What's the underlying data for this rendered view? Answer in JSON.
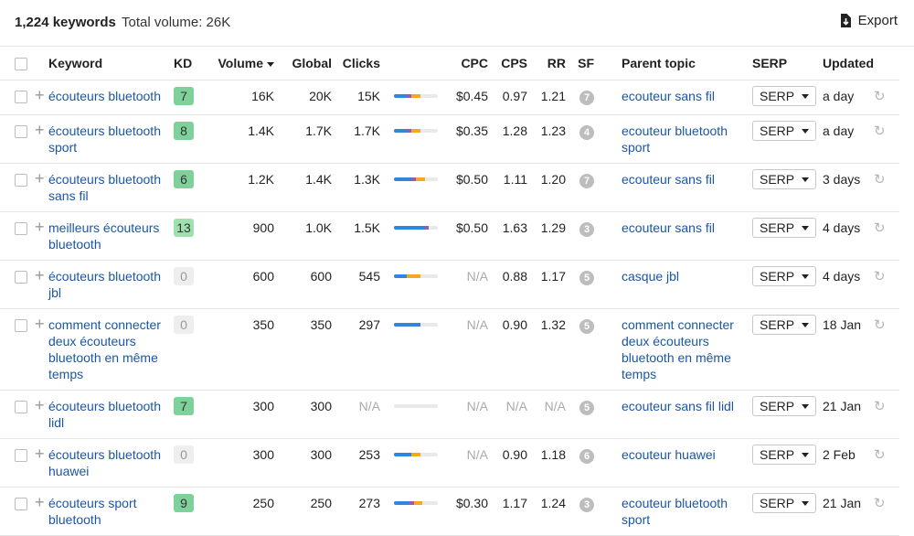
{
  "summary": {
    "keywords_count": "1,224 keywords",
    "total_volume": "Total volume: 26K"
  },
  "export_label": "Export",
  "columns": {
    "keyword": "Keyword",
    "kd": "KD",
    "volume": "Volume",
    "global": "Global",
    "clicks": "Clicks",
    "cpc": "CPC",
    "cps": "CPS",
    "rr": "RR",
    "sf": "SF",
    "parent": "Parent topic",
    "serp": "SERP",
    "updated": "Updated"
  },
  "serp_button_label": "SERP",
  "colors": {
    "organic": "#2e86de",
    "paid": "#9b59b6",
    "orange": "#f5a623",
    "kd_green": "#7fd19b",
    "kd_light": "#9fe0b0",
    "link": "#1a56a6"
  },
  "rows": [
    {
      "keyword": "écouteurs bluetooth",
      "kd": "7",
      "volume": "16K",
      "global": "20K",
      "clicks": "15K",
      "click_mix": [
        0.3,
        0.1,
        0.2,
        0.4
      ],
      "cpc": "$0.45",
      "cps": "0.97",
      "rr": "1.21",
      "sf": "7",
      "parent": "ecouteur sans fil",
      "updated": "a day"
    },
    {
      "keyword": "écouteurs bluetooth sport",
      "kd": "8",
      "volume": "1.4K",
      "global": "1.7K",
      "clicks": "1.7K",
      "click_mix": [
        0.3,
        0.1,
        0.2,
        0.4
      ],
      "cpc": "$0.35",
      "cps": "1.28",
      "rr": "1.23",
      "sf": "4",
      "parent": "ecouteur bluetooth sport",
      "updated": "a day"
    },
    {
      "keyword": "écouteurs bluetooth sans fil",
      "kd": "6",
      "volume": "1.2K",
      "global": "1.4K",
      "clicks": "1.3K",
      "click_mix": [
        0.4,
        0.1,
        0.2,
        0.3
      ],
      "cpc": "$0.50",
      "cps": "1.11",
      "rr": "1.20",
      "sf": "7",
      "parent": "ecouteur sans fil",
      "updated": "3 days"
    },
    {
      "keyword": "meilleurs écouteurs bluetooth",
      "kd": "13",
      "volume": "900",
      "global": "1.0K",
      "clicks": "1.5K",
      "click_mix": [
        0.7,
        0.1,
        0.0,
        0.2
      ],
      "cpc": "$0.50",
      "cps": "1.63",
      "rr": "1.29",
      "sf": "3",
      "parent": "ecouteur sans fil",
      "updated": "4 days"
    },
    {
      "keyword": "écouteurs bluetooth jbl",
      "kd": "0",
      "volume": "600",
      "global": "600",
      "clicks": "545",
      "click_mix": [
        0.3,
        0.0,
        0.3,
        0.4
      ],
      "cpc": "N/A",
      "cps": "0.88",
      "rr": "1.17",
      "sf": "5",
      "parent": "casque jbl",
      "updated": "4 days"
    },
    {
      "keyword": "comment connecter deux écouteurs bluetooth en même temps",
      "kd": "0",
      "volume": "350",
      "global": "350",
      "clicks": "297",
      "click_mix": [
        0.6,
        0.0,
        0.0,
        0.4
      ],
      "cpc": "N/A",
      "cps": "0.90",
      "rr": "1.32",
      "sf": "5",
      "parent": "comment connecter deux écouteurs bluetooth en même temps",
      "updated": "18 Jan"
    },
    {
      "keyword": "écouteurs bluetooth lidl",
      "kd": "7",
      "volume": "300",
      "global": "300",
      "clicks": "N/A",
      "click_mix": [
        0.0,
        0.0,
        0.0,
        1.0
      ],
      "cpc": "N/A",
      "cps": "N/A",
      "rr": "N/A",
      "sf": "5",
      "parent": "ecouteur sans fil lidl",
      "updated": "21 Jan"
    },
    {
      "keyword": "écouteurs bluetooth huawei",
      "kd": "0",
      "volume": "300",
      "global": "300",
      "clicks": "253",
      "click_mix": [
        0.4,
        0.0,
        0.2,
        0.4
      ],
      "cpc": "N/A",
      "cps": "0.90",
      "rr": "1.18",
      "sf": "6",
      "parent": "ecouteur huawei",
      "updated": "2 Feb"
    },
    {
      "keyword": "écouteurs sport bluetooth",
      "kd": "9",
      "volume": "250",
      "global": "250",
      "clicks": "273",
      "click_mix": [
        0.35,
        0.1,
        0.2,
        0.35
      ],
      "cpc": "$0.30",
      "cps": "1.17",
      "rr": "1.24",
      "sf": "3",
      "parent": "ecouteur bluetooth sport",
      "updated": "21 Jan"
    }
  ]
}
